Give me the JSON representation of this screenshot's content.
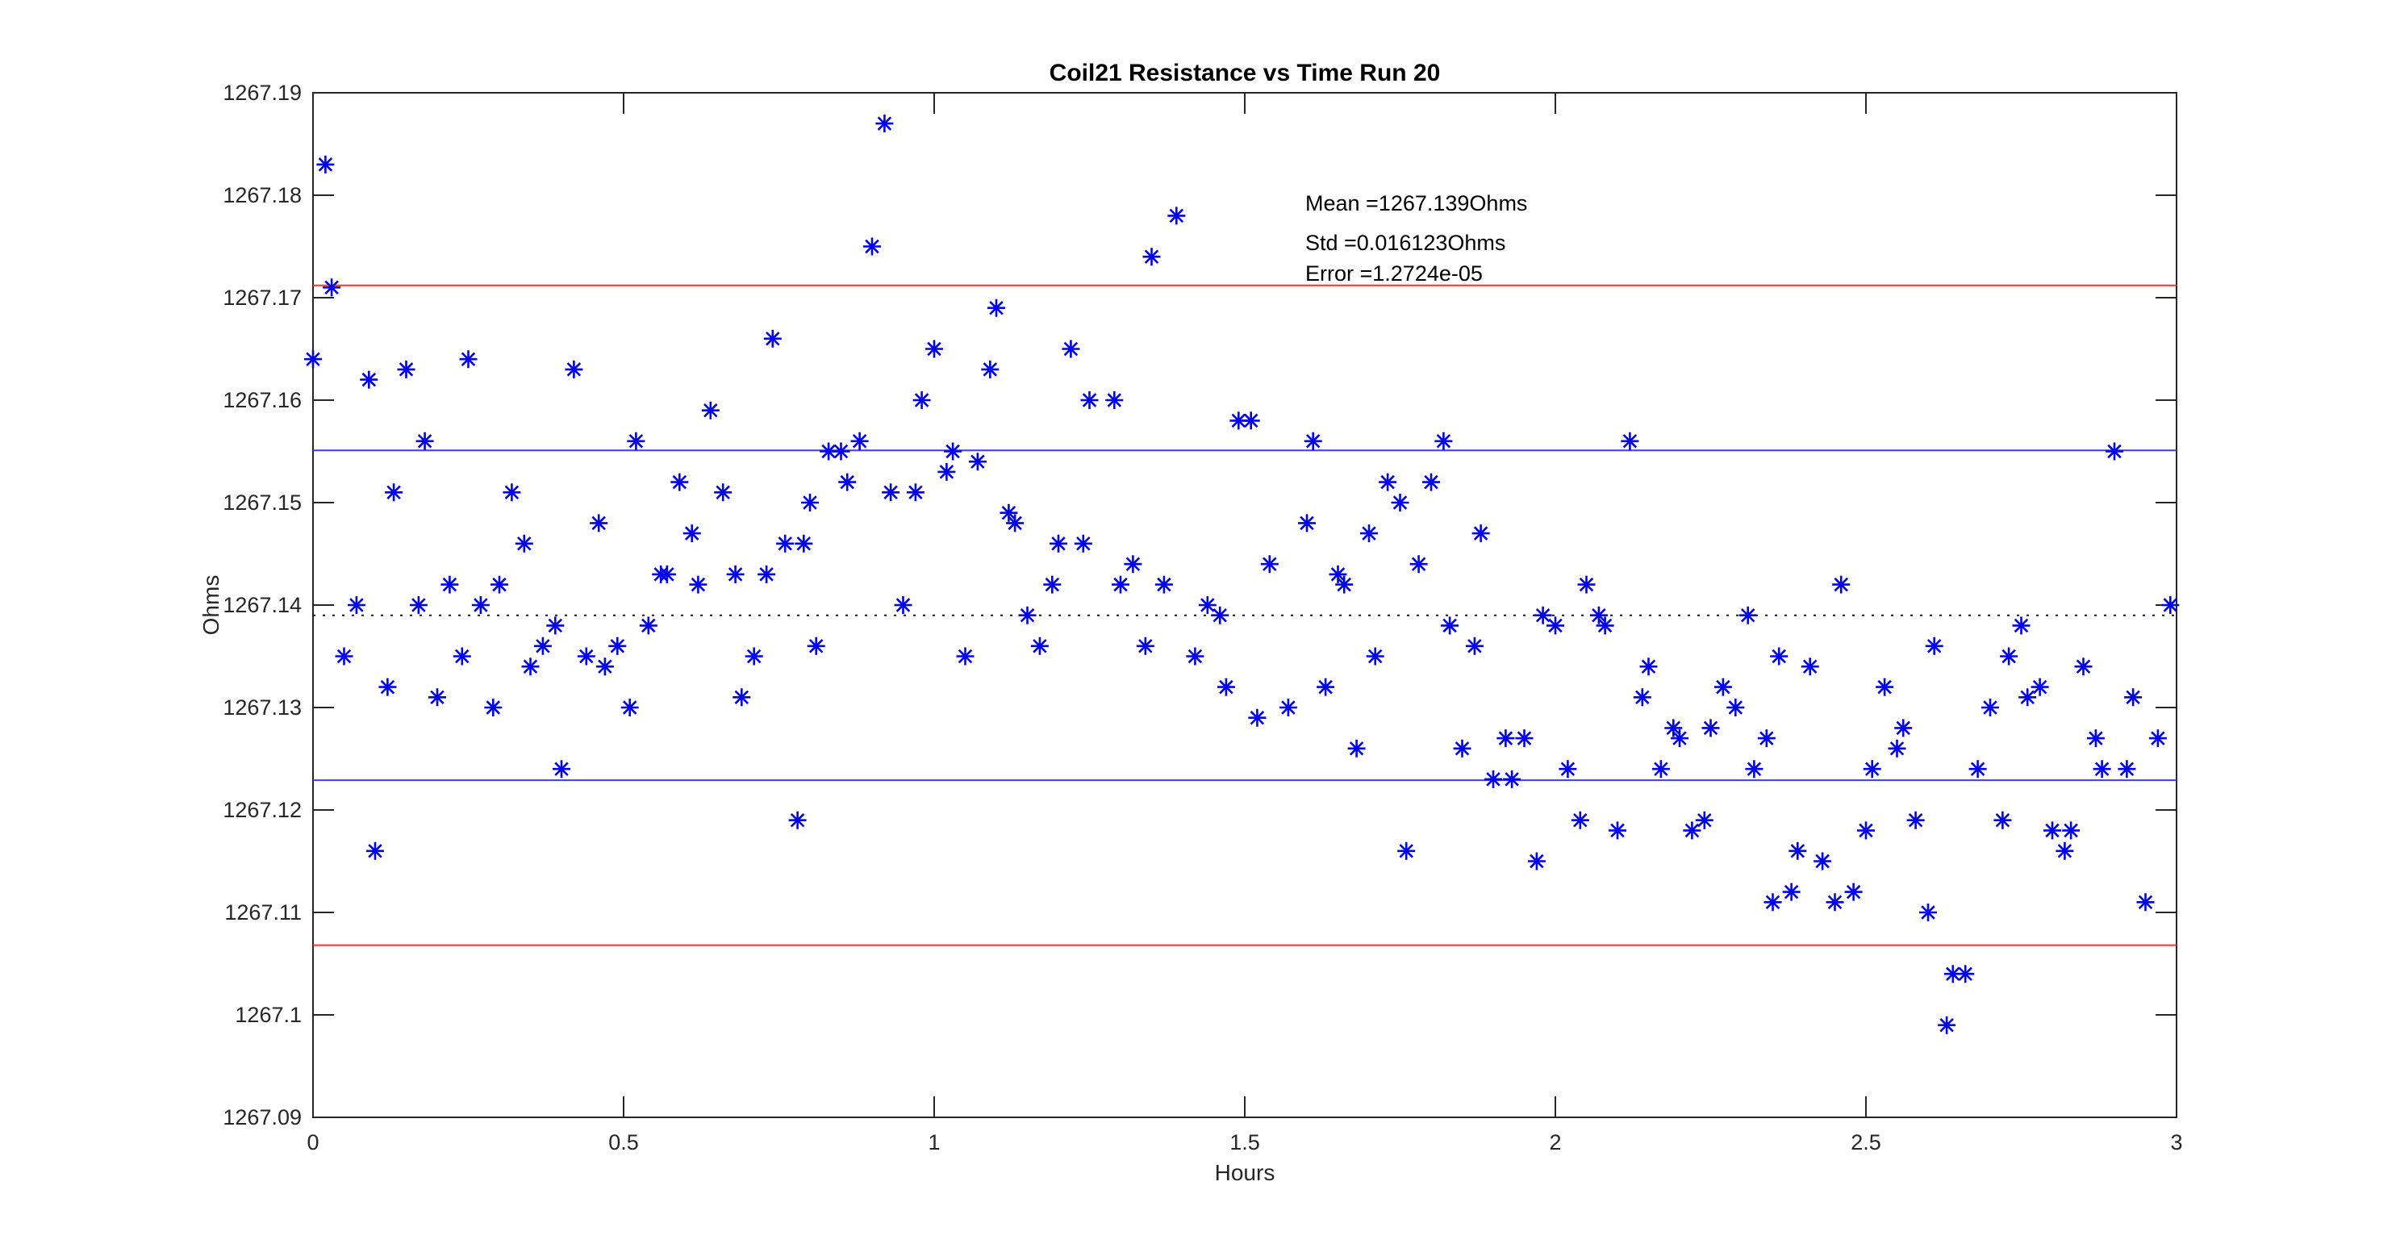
{
  "figure": {
    "title": "Coil21 Resistance vs Time Run 20",
    "xlabel": "Hours",
    "ylabel": "Ohms",
    "annotations": {
      "mean": "Mean =1267.139Ohms",
      "std": "Std =0.016123Ohms",
      "error": "Error =1.2724e-05"
    },
    "colors": {
      "background": "#ffffff",
      "marker": "#0000f0",
      "sigma_line": "#3b3bff",
      "two_sigma_line": "#ff2d2d",
      "mean_line": "#1a1a1a",
      "axis": "#262626"
    }
  },
  "chart_data": {
    "type": "scatter",
    "title": "Coil21 Resistance vs Time Run 20",
    "xlabel": "Hours",
    "ylabel": "Ohms",
    "xlim": [
      0,
      3
    ],
    "ylim": [
      1267.09,
      1267.19
    ],
    "xticks": [
      0,
      0.5,
      1,
      1.5,
      2,
      2.5,
      3
    ],
    "xtick_labels": [
      "0",
      "0.5",
      "1",
      "1.5",
      "2",
      "2.5",
      "3"
    ],
    "yticks": [
      1267.09,
      1267.1,
      1267.11,
      1267.12,
      1267.13,
      1267.14,
      1267.15,
      1267.16,
      1267.17,
      1267.18,
      1267.19
    ],
    "ytick_labels": [
      "1267.09",
      "1267.1",
      "1267.11",
      "1267.12",
      "1267.13",
      "1267.14",
      "1267.15",
      "1267.16",
      "1267.17",
      "1267.18",
      "1267.19"
    ],
    "grid": false,
    "legend": null,
    "stats": {
      "mean_ohms": 1267.139,
      "std_ohms": 0.016123,
      "error": 1.2724e-05
    },
    "reference_lines": [
      {
        "name": "mean",
        "value": 1267.139,
        "style": "dotted",
        "color_key": "mean_line"
      },
      {
        "name": "mean-plus-1std",
        "value": 1267.1551,
        "style": "solid",
        "color_key": "sigma_line"
      },
      {
        "name": "mean-minus-1std",
        "value": 1267.1229,
        "style": "solid",
        "color_key": "sigma_line"
      },
      {
        "name": "mean-plus-2std",
        "value": 1267.1712,
        "style": "solid",
        "color_key": "two_sigma_line"
      },
      {
        "name": "mean-minus-2std",
        "value": 1267.1068,
        "style": "solid",
        "color_key": "two_sigma_line"
      }
    ],
    "series": [
      {
        "name": "resistance-vs-time",
        "marker": "asterisk",
        "color_key": "marker",
        "points": [
          [
            0.0,
            1267.164
          ],
          [
            0.02,
            1267.183
          ],
          [
            0.03,
            1267.171
          ],
          [
            0.05,
            1267.135
          ],
          [
            0.07,
            1267.14
          ],
          [
            0.09,
            1267.162
          ],
          [
            0.1,
            1267.116
          ],
          [
            0.12,
            1267.132
          ],
          [
            0.13,
            1267.151
          ],
          [
            0.15,
            1267.163
          ],
          [
            0.17,
            1267.14
          ],
          [
            0.18,
            1267.156
          ],
          [
            0.2,
            1267.131
          ],
          [
            0.22,
            1267.142
          ],
          [
            0.24,
            1267.135
          ],
          [
            0.25,
            1267.164
          ],
          [
            0.27,
            1267.14
          ],
          [
            0.29,
            1267.13
          ],
          [
            0.3,
            1267.142
          ],
          [
            0.32,
            1267.151
          ],
          [
            0.34,
            1267.146
          ],
          [
            0.35,
            1267.134
          ],
          [
            0.37,
            1267.136
          ],
          [
            0.39,
            1267.138
          ],
          [
            0.4,
            1267.124
          ],
          [
            0.42,
            1267.163
          ],
          [
            0.44,
            1267.135
          ],
          [
            0.46,
            1267.148
          ],
          [
            0.47,
            1267.134
          ],
          [
            0.49,
            1267.136
          ],
          [
            0.51,
            1267.13
          ],
          [
            0.52,
            1267.156
          ],
          [
            0.54,
            1267.138
          ],
          [
            0.56,
            1267.143
          ],
          [
            0.57,
            1267.143
          ],
          [
            0.59,
            1267.152
          ],
          [
            0.61,
            1267.147
          ],
          [
            0.62,
            1267.142
          ],
          [
            0.64,
            1267.159
          ],
          [
            0.66,
            1267.151
          ],
          [
            0.68,
            1267.143
          ],
          [
            0.69,
            1267.131
          ],
          [
            0.71,
            1267.135
          ],
          [
            0.73,
            1267.143
          ],
          [
            0.74,
            1267.166
          ],
          [
            0.76,
            1267.146
          ],
          [
            0.78,
            1267.119
          ],
          [
            0.79,
            1267.146
          ],
          [
            0.8,
            1267.15
          ],
          [
            0.81,
            1267.136
          ],
          [
            0.83,
            1267.155
          ],
          [
            0.85,
            1267.155
          ],
          [
            0.86,
            1267.152
          ],
          [
            0.88,
            1267.156
          ],
          [
            0.9,
            1267.175
          ],
          [
            0.92,
            1267.187
          ],
          [
            0.93,
            1267.151
          ],
          [
            0.95,
            1267.14
          ],
          [
            0.97,
            1267.151
          ],
          [
            0.98,
            1267.16
          ],
          [
            1.0,
            1267.165
          ],
          [
            1.02,
            1267.153
          ],
          [
            1.03,
            1267.155
          ],
          [
            1.05,
            1267.135
          ],
          [
            1.07,
            1267.154
          ],
          [
            1.09,
            1267.163
          ],
          [
            1.1,
            1267.169
          ],
          [
            1.12,
            1267.149
          ],
          [
            1.13,
            1267.148
          ],
          [
            1.15,
            1267.139
          ],
          [
            1.17,
            1267.136
          ],
          [
            1.19,
            1267.142
          ],
          [
            1.2,
            1267.146
          ],
          [
            1.22,
            1267.165
          ],
          [
            1.24,
            1267.146
          ],
          [
            1.25,
            1267.16
          ],
          [
            1.29,
            1267.16
          ],
          [
            1.3,
            1267.142
          ],
          [
            1.32,
            1267.144
          ],
          [
            1.34,
            1267.136
          ],
          [
            1.35,
            1267.174
          ],
          [
            1.37,
            1267.142
          ],
          [
            1.39,
            1267.178
          ],
          [
            1.42,
            1267.135
          ],
          [
            1.44,
            1267.14
          ],
          [
            1.46,
            1267.139
          ],
          [
            1.47,
            1267.132
          ],
          [
            1.49,
            1267.158
          ],
          [
            1.51,
            1267.158
          ],
          [
            1.52,
            1267.129
          ],
          [
            1.54,
            1267.144
          ],
          [
            1.57,
            1267.13
          ],
          [
            1.6,
            1267.148
          ],
          [
            1.61,
            1267.156
          ],
          [
            1.63,
            1267.132
          ],
          [
            1.65,
            1267.143
          ],
          [
            1.66,
            1267.142
          ],
          [
            1.68,
            1267.126
          ],
          [
            1.7,
            1267.147
          ],
          [
            1.71,
            1267.135
          ],
          [
            1.73,
            1267.152
          ],
          [
            1.75,
            1267.15
          ],
          [
            1.76,
            1267.116
          ],
          [
            1.78,
            1267.144
          ],
          [
            1.8,
            1267.152
          ],
          [
            1.82,
            1267.156
          ],
          [
            1.83,
            1267.138
          ],
          [
            1.85,
            1267.126
          ],
          [
            1.87,
            1267.136
          ],
          [
            1.88,
            1267.147
          ],
          [
            1.9,
            1267.123
          ],
          [
            1.92,
            1267.127
          ],
          [
            1.93,
            1267.123
          ],
          [
            1.95,
            1267.127
          ],
          [
            1.97,
            1267.115
          ],
          [
            1.98,
            1267.139
          ],
          [
            2.0,
            1267.138
          ],
          [
            2.02,
            1267.124
          ],
          [
            2.04,
            1267.119
          ],
          [
            2.05,
            1267.142
          ],
          [
            2.07,
            1267.139
          ],
          [
            2.08,
            1267.138
          ],
          [
            2.1,
            1267.118
          ],
          [
            2.12,
            1267.156
          ],
          [
            2.14,
            1267.131
          ],
          [
            2.15,
            1267.134
          ],
          [
            2.17,
            1267.124
          ],
          [
            2.19,
            1267.128
          ],
          [
            2.2,
            1267.127
          ],
          [
            2.22,
            1267.118
          ],
          [
            2.24,
            1267.119
          ],
          [
            2.25,
            1267.128
          ],
          [
            2.27,
            1267.132
          ],
          [
            2.29,
            1267.13
          ],
          [
            2.31,
            1267.139
          ],
          [
            2.32,
            1267.124
          ],
          [
            2.34,
            1267.127
          ],
          [
            2.35,
            1267.111
          ],
          [
            2.36,
            1267.135
          ],
          [
            2.38,
            1267.112
          ],
          [
            2.39,
            1267.116
          ],
          [
            2.41,
            1267.134
          ],
          [
            2.43,
            1267.115
          ],
          [
            2.45,
            1267.111
          ],
          [
            2.46,
            1267.142
          ],
          [
            2.48,
            1267.112
          ],
          [
            2.5,
            1267.118
          ],
          [
            2.51,
            1267.124
          ],
          [
            2.53,
            1267.132
          ],
          [
            2.55,
            1267.126
          ],
          [
            2.56,
            1267.128
          ],
          [
            2.58,
            1267.119
          ],
          [
            2.6,
            1267.11
          ],
          [
            2.61,
            1267.136
          ],
          [
            2.63,
            1267.099
          ],
          [
            2.64,
            1267.104
          ],
          [
            2.66,
            1267.104
          ],
          [
            2.68,
            1267.124
          ],
          [
            2.7,
            1267.13
          ],
          [
            2.72,
            1267.119
          ],
          [
            2.73,
            1267.135
          ],
          [
            2.75,
            1267.138
          ],
          [
            2.76,
            1267.131
          ],
          [
            2.78,
            1267.132
          ],
          [
            2.8,
            1267.118
          ],
          [
            2.82,
            1267.116
          ],
          [
            2.83,
            1267.118
          ],
          [
            2.85,
            1267.134
          ],
          [
            2.87,
            1267.127
          ],
          [
            2.88,
            1267.124
          ],
          [
            2.9,
            1267.155
          ],
          [
            2.92,
            1267.124
          ],
          [
            2.93,
            1267.131
          ],
          [
            2.95,
            1267.111
          ],
          [
            2.97,
            1267.127
          ],
          [
            2.99,
            1267.14
          ]
        ]
      }
    ]
  }
}
